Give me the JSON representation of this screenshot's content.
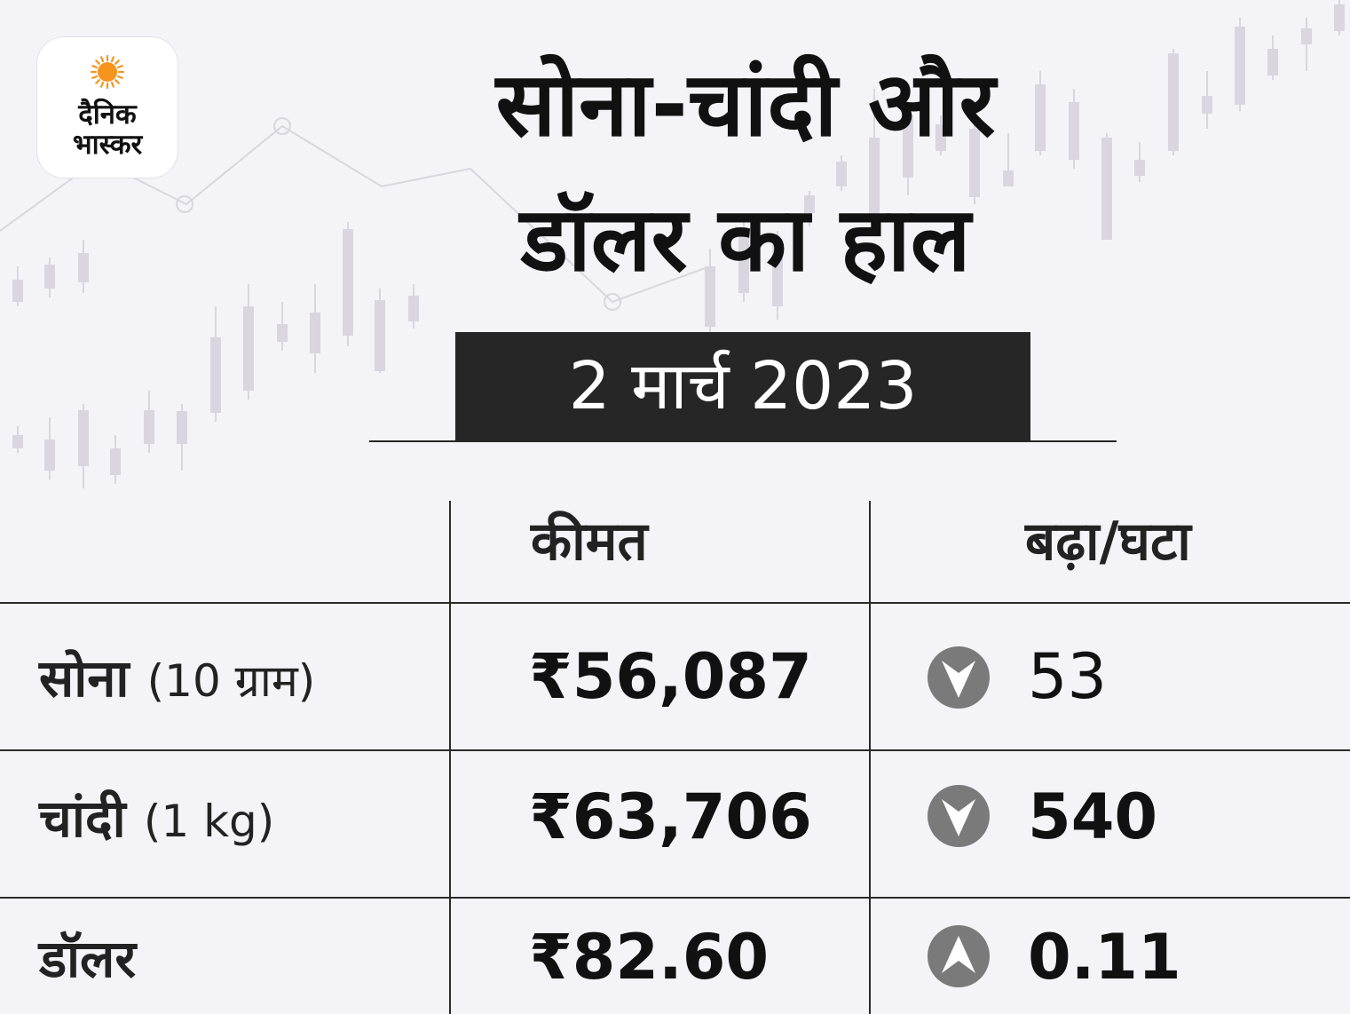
{
  "logo": {
    "line1": "दैनिक",
    "line2": "भास्कर",
    "sun_color": "#f7941d"
  },
  "header": {
    "title_line1": "सोना-चांदी और",
    "title_line2": "डॉलर का हाल",
    "date": "2 मार्च 2023"
  },
  "table": {
    "columns": [
      "",
      "कीमत",
      "बढ़ा/घटा"
    ],
    "rows": [
      {
        "name": "सोना",
        "unit": "(10 ग्राम)",
        "price": "₹56,087",
        "change": "53",
        "direction": "down",
        "icon": "down-arrow-icon"
      },
      {
        "name": "चांदी",
        "unit": "(1 kg)",
        "price": "₹63,706",
        "change": "540",
        "direction": "down",
        "icon": "down-arrow-icon"
      },
      {
        "name": "डॉलर",
        "unit": "",
        "price": "₹82.60",
        "change": "0.11",
        "direction": "up",
        "icon": "up-arrow-icon"
      }
    ]
  },
  "colors": {
    "background": "#f4f3f8",
    "date_box": "#262626",
    "arrow_circle": "#7a7a7a",
    "chart_decoration": "#d9d6df"
  }
}
